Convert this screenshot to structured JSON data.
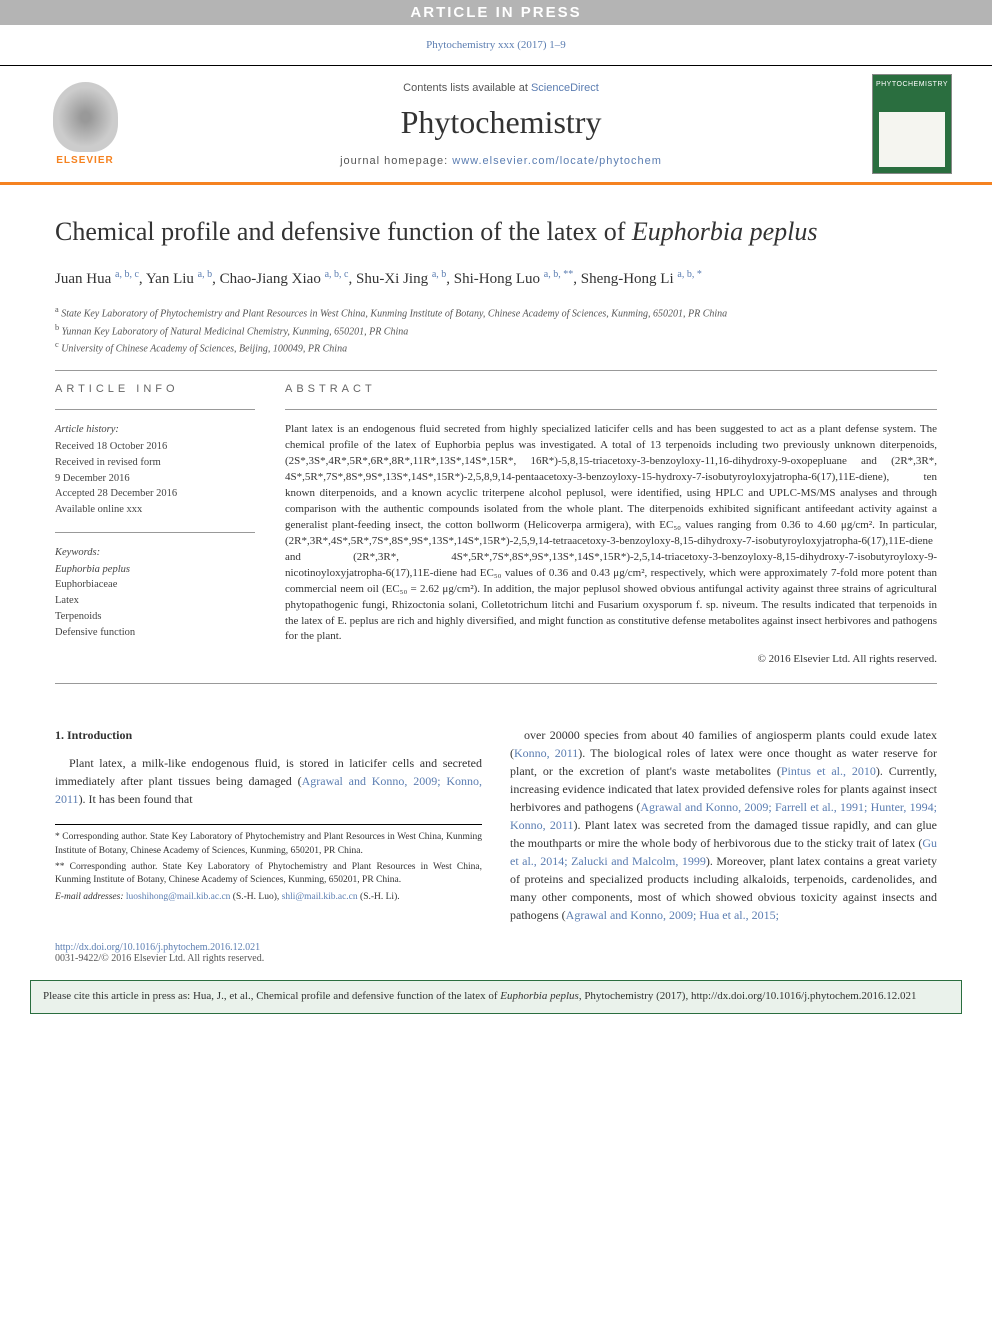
{
  "banner": {
    "in_press": "ARTICLE IN PRESS",
    "top_citation": "Phytochemistry xxx (2017) 1–9",
    "contents_line_pre": "Contents lists available at ",
    "contents_line_link": "ScienceDirect",
    "journal": "Phytochemistry",
    "homepage_label": "journal homepage: ",
    "homepage_url": "www.elsevier.com/locate/phytochem",
    "elsevier": "ELSEVIER",
    "cover_label": "PHYTOCHEMISTRY"
  },
  "title_parts": {
    "pre": "Chemical profile and defensive function of the latex of ",
    "ital": "Euphorbia peplus"
  },
  "authors_html": "Juan Hua <sup>a, b, c</sup>, Yan Liu <sup>a, b</sup>, Chao-Jiang Xiao <sup>a, b, c</sup>, Shu-Xi Jing <sup>a, b</sup>, Shi-Hong Luo <sup>a, b, **</sup>, Sheng-Hong Li <sup>a, b, *</sup>",
  "affiliations": [
    {
      "sup": "a",
      "text": "State Key Laboratory of Phytochemistry and Plant Resources in West China, Kunming Institute of Botany, Chinese Academy of Sciences, Kunming, 650201, PR China"
    },
    {
      "sup": "b",
      "text": "Yunnan Key Laboratory of Natural Medicinal Chemistry, Kunming, 650201, PR China"
    },
    {
      "sup": "c",
      "text": "University of Chinese Academy of Sciences, Beijing, 100049, PR China"
    }
  ],
  "info": {
    "label": "ARTICLE INFO",
    "history_heading": "Article history:",
    "history": [
      "Received 18 October 2016",
      "Received in revised form",
      "9 December 2016",
      "Accepted 28 December 2016",
      "Available online xxx"
    ],
    "keywords_heading": "Keywords:",
    "keywords": [
      "Euphorbia peplus",
      "Euphorbiaceae",
      "Latex",
      "Terpenoids",
      "Defensive function"
    ]
  },
  "abstract": {
    "label": "ABSTRACT",
    "text": "Plant latex is an endogenous fluid secreted from highly specialized laticifer cells and has been suggested to act as a plant defense system. The chemical profile of the latex of Euphorbia peplus was investigated. A total of 13 terpenoids including two previously unknown diterpenoids, (2S*,3S*,4R*,5R*,6R*,8R*,11R*,13S*,14S*,15R*, 16R*)-5,8,15-triacetoxy-3-benzoyloxy-11,16-dihydroxy-9-oxopepluane and (2R*,3R*, 4S*,5R*,7S*,8S*,9S*,13S*,14S*,15R*)-2,5,8,9,14-pentaacetoxy-3-benzoyloxy-15-hydroxy-7-isobutyroyloxyjatropha-6(17),11E-diene), ten known diterpenoids, and a known acyclic triterpene alcohol peplusol, were identified, using HPLC and UPLC-MS/MS analyses and through comparison with the authentic compounds isolated from the whole plant. The diterpenoids exhibited significant antifeedant activity against a generalist plant-feeding insect, the cotton bollworm (Helicoverpa armigera), with EC₅₀ values ranging from 0.36 to 4.60 μg/cm². In particular, (2R*,3R*,4S*,5R*,7S*,8S*,9S*,13S*,14S*,15R*)-2,5,9,14-tetraacetoxy-3-benzoyloxy-8,15-dihydroxy-7-isobutyroyloxyjatropha-6(17),11E-diene and (2R*,3R*, 4S*,5R*,7S*,8S*,9S*,13S*,14S*,15R*)-2,5,14-triacetoxy-3-benzoyloxy-8,15-dihydroxy-7-isobutyroyloxy-9-nicotinoyloxyjatropha-6(17),11E-diene had EC₅₀ values of 0.36 and 0.43 μg/cm², respectively, which were approximately 7-fold more potent than commercial neem oil (EC₅₀ = 2.62 μg/cm²). In addition, the major peplusol showed obvious antifungal activity against three strains of agricultural phytopathogenic fungi, Rhizoctonia solani, Colletotrichum litchi and Fusarium oxysporum f. sp. niveum. The results indicated that terpenoids in the latex of E. peplus are rich and highly diversified, and might function as constitutive defense metabolites against insect herbivores and pathogens for the plant.",
    "copyright": "© 2016 Elsevier Ltd. All rights reserved."
  },
  "intro": {
    "heading": "1. Introduction",
    "para1_pre": "Plant latex, a milk-like endogenous fluid, is stored in laticifer cells and secreted immediately after plant tissues being damaged (",
    "para1_link1": "Agrawal and Konno, 2009; Konno, 2011",
    "para1_post": "). It has been found that ",
    "para2_a": "over 20000 species from about 40 families of angiosperm plants could exude latex (",
    "para2_link1": "Konno, 2011",
    "para2_b": "). The biological roles of latex were once thought as water reserve for plant, or the excretion of plant's waste metabolites (",
    "para2_link2": "Pintus et al., 2010",
    "para2_c": "). Currently, increasing evidence indicated that latex provided defensive roles for plants against insect herbivores and pathogens (",
    "para2_link3": "Agrawal and Konno, 2009; Farrell et al., 1991; Hunter, 1994; Konno, 2011",
    "para2_d": "). Plant latex was secreted from the damaged tissue rapidly, and can glue the mouthparts or mire the whole body of herbivorous due to the sticky trait of latex (",
    "para2_link4": "Gu et al., 2014; Zalucki and Malcolm, 1999",
    "para2_e": "). Moreover, plant latex contains a great variety of proteins and specialized products including alkaloids, terpenoids, cardenolides, and many other components, most of which showed obvious toxicity against insects and pathogens (",
    "para2_link5": "Agrawal and Konno, 2009; Hua et al., 2015;"
  },
  "footnotes": {
    "corr1": "* Corresponding author. State Key Laboratory of Phytochemistry and Plant Resources in West China, Kunming Institute of Botany, Chinese Academy of Sciences, Kunming, 650201, PR China.",
    "corr2": "** Corresponding author. State Key Laboratory of Phytochemistry and Plant Resources in West China, Kunming Institute of Botany, Chinese Academy of Sciences, Kunming, 650201, PR China.",
    "email_label": "E-mail addresses: ",
    "email1": "luoshihong@mail.kib.ac.cn",
    "email1_who": " (S.-H. Luo), ",
    "email2": "shli@mail.kib.ac.cn",
    "email2_who": " (S.-H. Li)."
  },
  "doi": {
    "url": "http://dx.doi.org/10.1016/j.phytochem.2016.12.021",
    "copyright": "0031-9422/© 2016 Elsevier Ltd. All rights reserved."
  },
  "citebox": {
    "pre": "Please cite this article in press as: Hua, J., et al., Chemical profile and defensive function of the latex of ",
    "ital": "Euphorbia peplus",
    "post": ", Phytochemistry (2017), http://dx.doi.org/10.1016/j.phytochem.2016.12.021"
  },
  "colors": {
    "orange": "#f58220",
    "link": "#5b7db1",
    "green": "#2a6e3f",
    "citebox_bg": "#eaf2eb",
    "inpress_bg": "#b4b4b4"
  }
}
